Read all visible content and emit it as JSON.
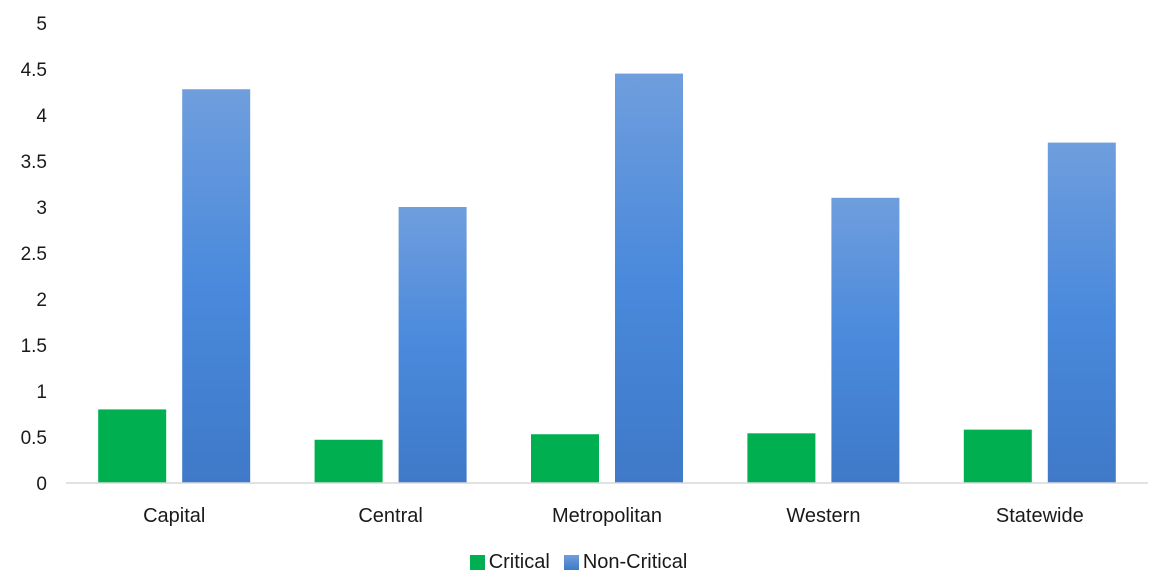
{
  "chart_data": {
    "type": "bar",
    "title": "",
    "xlabel": "",
    "ylabel": "",
    "categories": [
      "Capital",
      "Central",
      "Metropolitan",
      "Western",
      "Statewide"
    ],
    "series": [
      {
        "name": "Critical",
        "color": "#00b050",
        "values": [
          0.8,
          0.47,
          0.53,
          0.54,
          0.58
        ]
      },
      {
        "name": "Non-Critical",
        "color": "#4a86d8",
        "values": [
          4.28,
          3.0,
          4.45,
          3.1,
          3.7
        ]
      }
    ],
    "ylim": [
      0,
      5
    ],
    "yticks": [
      "0",
      "0.5",
      "1",
      "1.5",
      "2",
      "2.5",
      "3",
      "3.5",
      "4",
      "4.5",
      "5"
    ],
    "grid": false,
    "legend_position": "bottom"
  }
}
